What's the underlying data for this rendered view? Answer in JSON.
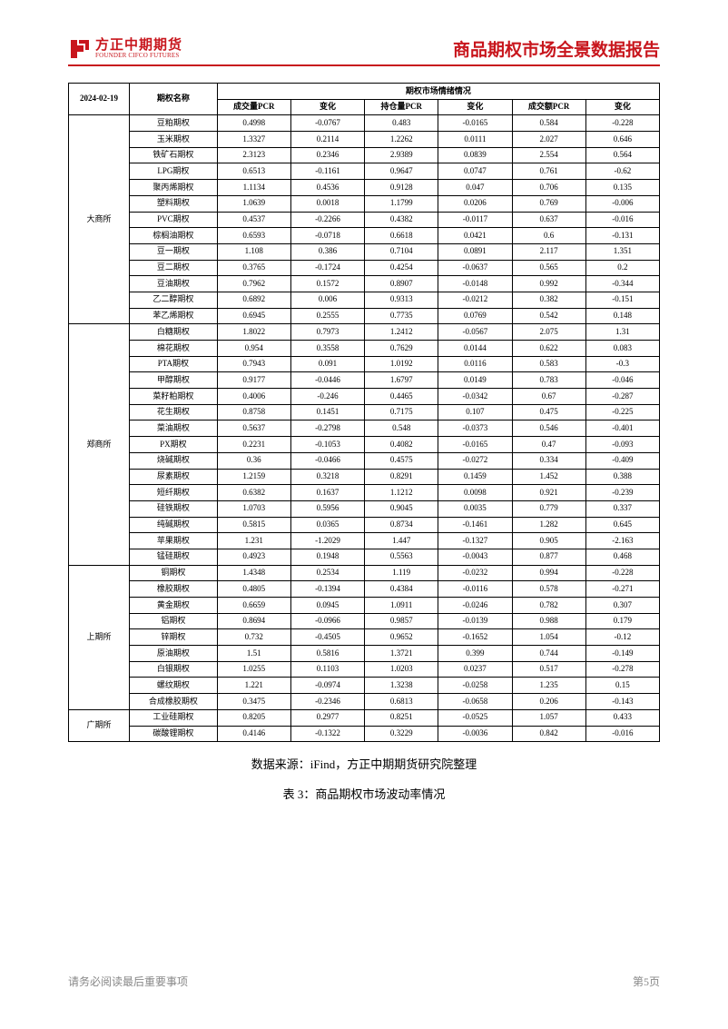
{
  "logo": {
    "cn": "方正中期期货",
    "en": "FOUNDER CIFCO FUTURES",
    "color": "#c8161d"
  },
  "report_title": "商品期权市场全景数据报告",
  "table": {
    "date": "2024-02-19",
    "header_option_name": "期权名称",
    "section_header": "期权市场情绪情况",
    "columns": [
      "成交量PCR",
      "变化",
      "持仓量PCR",
      "变化",
      "成交额PCR",
      "变化"
    ],
    "groups": [
      {
        "exchange": "大商所",
        "rows": [
          {
            "name": "豆粕期权",
            "v": [
              "0.4998",
              "-0.0767",
              "0.483",
              "-0.0165",
              "0.584",
              "-0.228"
            ]
          },
          {
            "name": "玉米期权",
            "v": [
              "1.3327",
              "0.2114",
              "1.2262",
              "0.0111",
              "2.027",
              "0.646"
            ]
          },
          {
            "name": "铁矿石期权",
            "v": [
              "2.3123",
              "0.2346",
              "2.9389",
              "0.0839",
              "2.554",
              "0.564"
            ]
          },
          {
            "name": "LPG期权",
            "v": [
              "0.6513",
              "-0.1161",
              "0.9647",
              "0.0747",
              "0.761",
              "-0.62"
            ]
          },
          {
            "name": "聚丙烯期权",
            "v": [
              "1.1134",
              "0.4536",
              "0.9128",
              "0.047",
              "0.706",
              "0.135"
            ]
          },
          {
            "name": "塑料期权",
            "v": [
              "1.0639",
              "0.0018",
              "1.1799",
              "0.0206",
              "0.769",
              "-0.006"
            ]
          },
          {
            "name": "PVC期权",
            "v": [
              "0.4537",
              "-0.2266",
              "0.4382",
              "-0.0117",
              "0.637",
              "-0.016"
            ]
          },
          {
            "name": "棕榈油期权",
            "v": [
              "0.6593",
              "-0.0718",
              "0.6618",
              "0.0421",
              "0.6",
              "-0.131"
            ]
          },
          {
            "name": "豆一期权",
            "v": [
              "1.108",
              "0.386",
              "0.7104",
              "0.0891",
              "2.117",
              "1.351"
            ]
          },
          {
            "name": "豆二期权",
            "v": [
              "0.3765",
              "-0.1724",
              "0.4254",
              "-0.0637",
              "0.565",
              "0.2"
            ]
          },
          {
            "name": "豆油期权",
            "v": [
              "0.7962",
              "0.1572",
              "0.8907",
              "-0.0148",
              "0.992",
              "-0.344"
            ]
          },
          {
            "name": "乙二醇期权",
            "v": [
              "0.6892",
              "0.006",
              "0.9313",
              "-0.0212",
              "0.382",
              "-0.151"
            ]
          },
          {
            "name": "苯乙烯期权",
            "v": [
              "0.6945",
              "0.2555",
              "0.7735",
              "0.0769",
              "0.542",
              "0.148"
            ]
          }
        ]
      },
      {
        "exchange": "郑商所",
        "rows": [
          {
            "name": "白糖期权",
            "v": [
              "1.8022",
              "0.7973",
              "1.2412",
              "-0.0567",
              "2.075",
              "1.31"
            ]
          },
          {
            "name": "棉花期权",
            "v": [
              "0.954",
              "0.3558",
              "0.7629",
              "0.0144",
              "0.622",
              "0.083"
            ]
          },
          {
            "name": "PTA期权",
            "v": [
              "0.7943",
              "0.091",
              "1.0192",
              "0.0116",
              "0.583",
              "-0.3"
            ]
          },
          {
            "name": "甲醇期权",
            "v": [
              "0.9177",
              "-0.0446",
              "1.6797",
              "0.0149",
              "0.783",
              "-0.046"
            ]
          },
          {
            "name": "菜籽粕期权",
            "v": [
              "0.4006",
              "-0.246",
              "0.4465",
              "-0.0342",
              "0.67",
              "-0.287"
            ]
          },
          {
            "name": "花生期权",
            "v": [
              "0.8758",
              "0.1451",
              "0.7175",
              "0.107",
              "0.475",
              "-0.225"
            ]
          },
          {
            "name": "菜油期权",
            "v": [
              "0.5637",
              "-0.2798",
              "0.548",
              "-0.0373",
              "0.546",
              "-0.401"
            ]
          },
          {
            "name": "PX期权",
            "v": [
              "0.2231",
              "-0.1053",
              "0.4082",
              "-0.0165",
              "0.47",
              "-0.093"
            ]
          },
          {
            "name": "烧碱期权",
            "v": [
              "0.36",
              "-0.0466",
              "0.4575",
              "-0.0272",
              "0.334",
              "-0.409"
            ]
          },
          {
            "name": "尿素期权",
            "v": [
              "1.2159",
              "0.3218",
              "0.8291",
              "0.1459",
              "1.452",
              "0.388"
            ]
          },
          {
            "name": "短纤期权",
            "v": [
              "0.6382",
              "0.1637",
              "1.1212",
              "0.0098",
              "0.921",
              "-0.239"
            ]
          },
          {
            "name": "硅铁期权",
            "v": [
              "1.0703",
              "0.5956",
              "0.9045",
              "0.0035",
              "0.779",
              "0.337"
            ]
          },
          {
            "name": "纯碱期权",
            "v": [
              "0.5815",
              "0.0365",
              "0.8734",
              "-0.1461",
              "1.282",
              "0.645"
            ]
          },
          {
            "name": "苹果期权",
            "v": [
              "1.231",
              "-1.2029",
              "1.447",
              "-0.1327",
              "0.905",
              "-2.163"
            ]
          },
          {
            "name": "锰硅期权",
            "v": [
              "0.4923",
              "0.1948",
              "0.5563",
              "-0.0043",
              "0.877",
              "0.468"
            ]
          }
        ]
      },
      {
        "exchange": "上期所",
        "rows": [
          {
            "name": "铜期权",
            "v": [
              "1.4348",
              "0.2534",
              "1.119",
              "-0.0232",
              "0.994",
              "-0.228"
            ]
          },
          {
            "name": "橡胶期权",
            "v": [
              "0.4805",
              "-0.1394",
              "0.4384",
              "-0.0116",
              "0.578",
              "-0.271"
            ]
          },
          {
            "name": "黄金期权",
            "v": [
              "0.6659",
              "0.0945",
              "1.0911",
              "-0.0246",
              "0.782",
              "0.307"
            ]
          },
          {
            "name": "铝期权",
            "v": [
              "0.8694",
              "-0.0966",
              "0.9857",
              "-0.0139",
              "0.988",
              "0.179"
            ]
          },
          {
            "name": "锌期权",
            "v": [
              "0.732",
              "-0.4505",
              "0.9652",
              "-0.1652",
              "1.054",
              "-0.12"
            ]
          },
          {
            "name": "原油期权",
            "v": [
              "1.51",
              "0.5816",
              "1.3721",
              "0.399",
              "0.744",
              "-0.149"
            ]
          },
          {
            "name": "白银期权",
            "v": [
              "1.0255",
              "0.1103",
              "1.0203",
              "0.0237",
              "0.517",
              "-0.278"
            ]
          },
          {
            "name": "螺纹期权",
            "v": [
              "1.221",
              "-0.0974",
              "1.3238",
              "-0.0258",
              "1.235",
              "0.15"
            ]
          },
          {
            "name": "合成橡胶期权",
            "v": [
              "0.3475",
              "-0.2346",
              "0.6813",
              "-0.0658",
              "0.206",
              "-0.143"
            ]
          }
        ]
      },
      {
        "exchange": "广期所",
        "rows": [
          {
            "name": "工业硅期权",
            "v": [
              "0.8205",
              "0.2977",
              "0.8251",
              "-0.0525",
              "1.057",
              "0.433"
            ]
          },
          {
            "name": "碳酸锂期权",
            "v": [
              "0.4146",
              "-0.1322",
              "0.3229",
              "-0.0036",
              "0.842",
              "-0.016"
            ]
          }
        ]
      }
    ]
  },
  "source_text": "数据来源：iFind，方正中期期货研究院整理",
  "caption_text": "表 3：商品期权市场波动率情况",
  "footer": {
    "left": "请务必阅读最后重要事项",
    "right": "第5页"
  }
}
